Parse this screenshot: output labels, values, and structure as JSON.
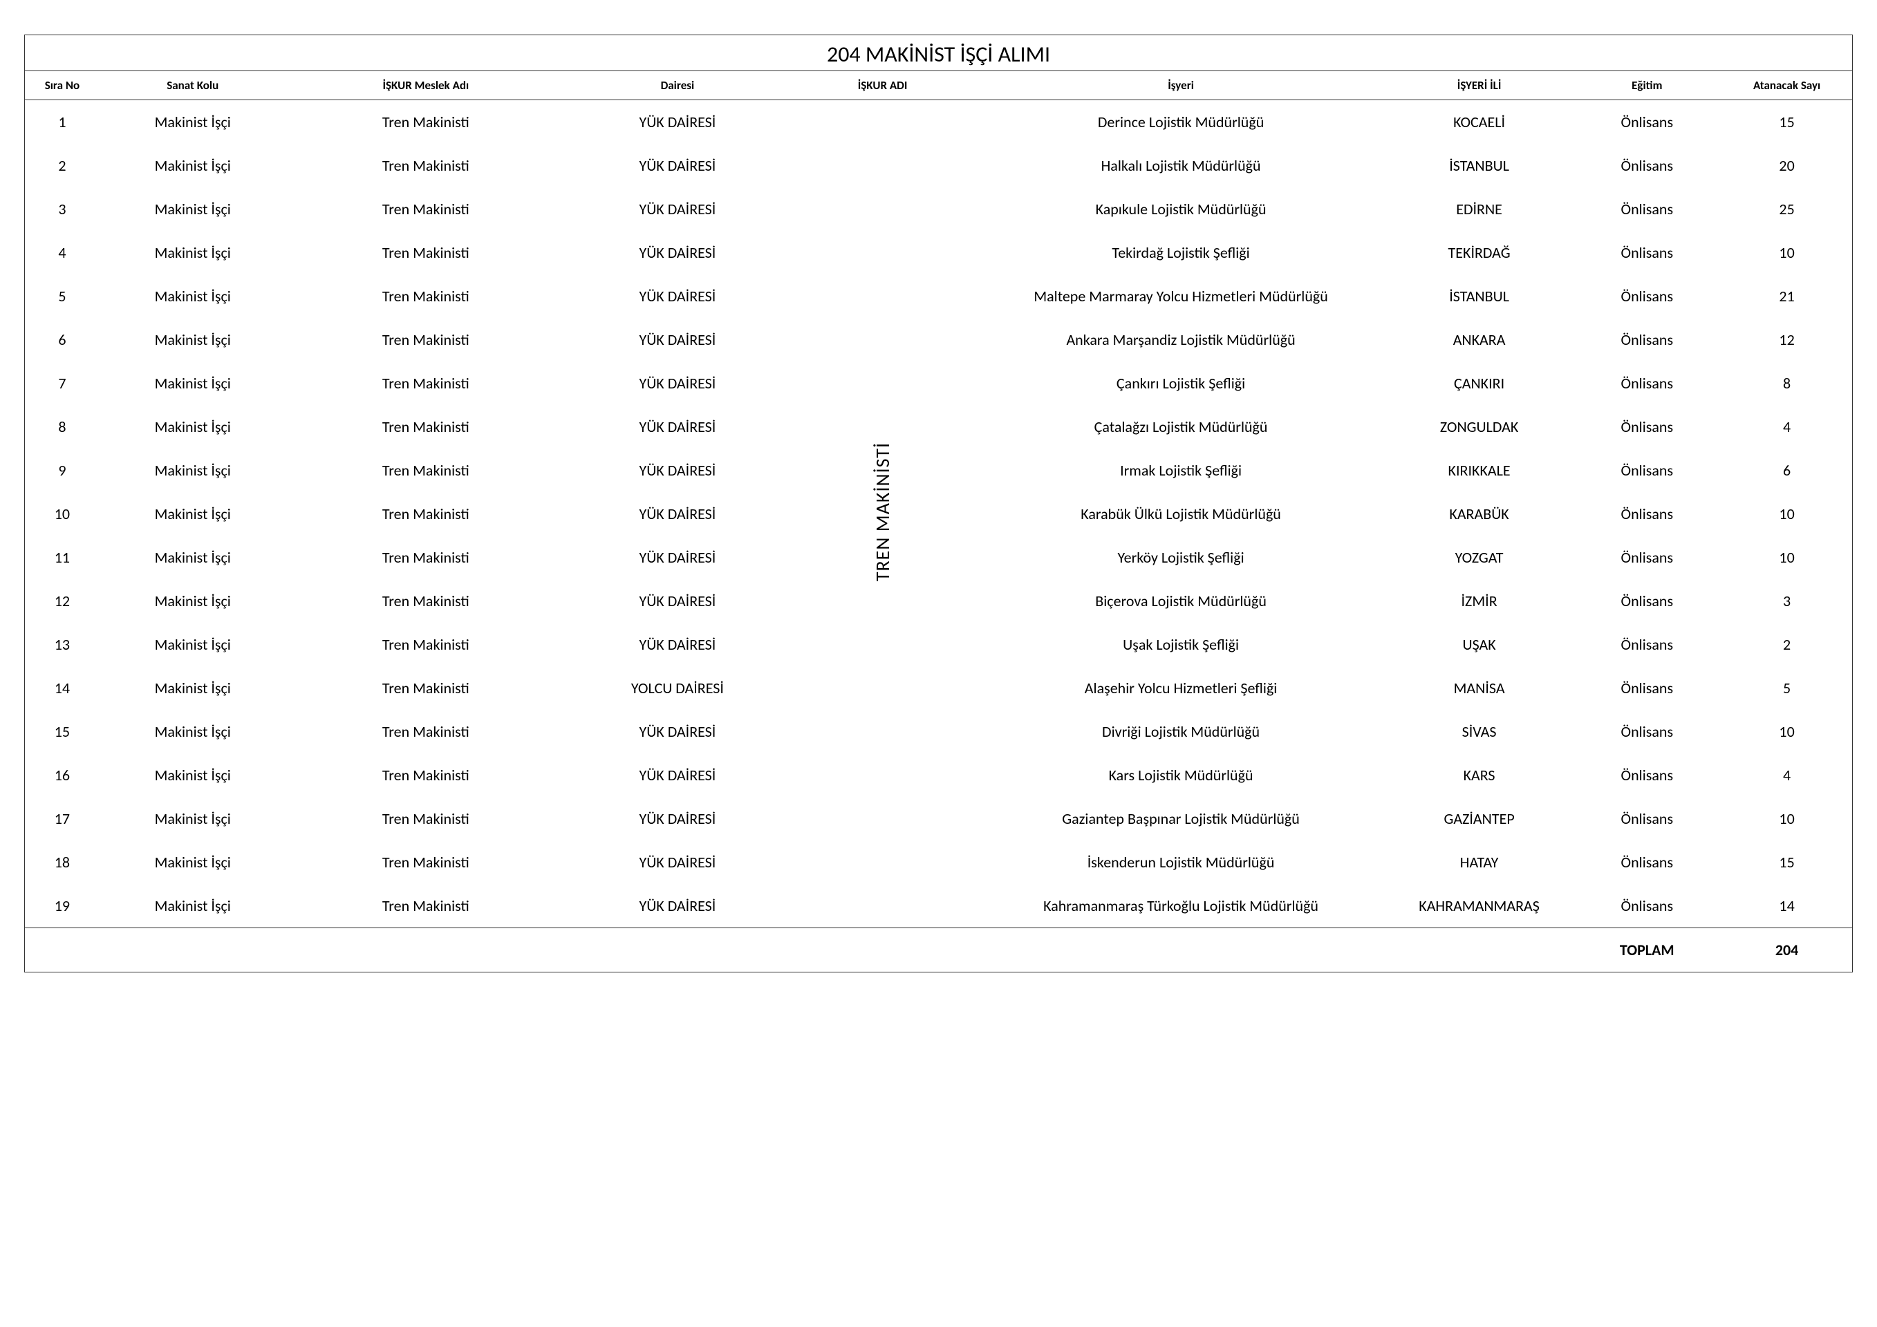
{
  "title": "204 MAKİNİST İŞÇİ ALIMI",
  "headers": {
    "sira": "Sıra No",
    "sanat": "Sanat Kolu",
    "meslek": "İŞKUR Meslek Adı",
    "dairesi": "Dairesi",
    "iskur": "İŞKUR ADI",
    "isyeri": "İşyeri",
    "il": "İŞYERİ İLİ",
    "egitim": "Eğitim",
    "sayi": "Atanacak Sayı"
  },
  "iskur_adi": "TREN MAKİNİSTİ",
  "rows": [
    {
      "sira": "1",
      "sanat": "Makinist İşçi",
      "meslek": "Tren Makinisti",
      "dairesi": "YÜK DAİRESİ",
      "isyeri": "Derince Lojistik Müdürlüğü",
      "il": "KOCAELİ",
      "egitim": "Önlisans",
      "sayi": "15"
    },
    {
      "sira": "2",
      "sanat": "Makinist İşçi",
      "meslek": "Tren Makinisti",
      "dairesi": "YÜK DAİRESİ",
      "isyeri": "Halkalı Lojistik Müdürlüğü",
      "il": "İSTANBUL",
      "egitim": "Önlisans",
      "sayi": "20"
    },
    {
      "sira": "3",
      "sanat": "Makinist İşçi",
      "meslek": "Tren Makinisti",
      "dairesi": "YÜK DAİRESİ",
      "isyeri": "Kapıkule Lojistik Müdürlüğü",
      "il": "EDİRNE",
      "egitim": "Önlisans",
      "sayi": "25"
    },
    {
      "sira": "4",
      "sanat": "Makinist İşçi",
      "meslek": "Tren Makinisti",
      "dairesi": "YÜK DAİRESİ",
      "isyeri": "Tekirdağ Lojistik Şefliği",
      "il": "TEKİRDAĞ",
      "egitim": "Önlisans",
      "sayi": "10"
    },
    {
      "sira": "5",
      "sanat": "Makinist İşçi",
      "meslek": "Tren Makinisti",
      "dairesi": "YÜK DAİRESİ",
      "isyeri": "Maltepe Marmaray Yolcu Hizmetleri Müdürlüğü",
      "il": "İSTANBUL",
      "egitim": "Önlisans",
      "sayi": "21"
    },
    {
      "sira": "6",
      "sanat": "Makinist İşçi",
      "meslek": "Tren Makinisti",
      "dairesi": "YÜK DAİRESİ",
      "isyeri": "Ankara Marşandiz Lojistik Müdürlüğü",
      "il": "ANKARA",
      "egitim": "Önlisans",
      "sayi": "12"
    },
    {
      "sira": "7",
      "sanat": "Makinist İşçi",
      "meslek": "Tren Makinisti",
      "dairesi": "YÜK DAİRESİ",
      "isyeri": "Çankırı Lojistik Şefliği",
      "il": "ÇANKIRI",
      "egitim": "Önlisans",
      "sayi": "8"
    },
    {
      "sira": "8",
      "sanat": "Makinist İşçi",
      "meslek": "Tren Makinisti",
      "dairesi": "YÜK DAİRESİ",
      "isyeri": "Çatalağzı Lojistik Müdürlüğü",
      "il": "ZONGULDAK",
      "egitim": "Önlisans",
      "sayi": "4"
    },
    {
      "sira": "9",
      "sanat": "Makinist İşçi",
      "meslek": "Tren Makinisti",
      "dairesi": "YÜK DAİRESİ",
      "isyeri": "Irmak Lojistik Şefliği",
      "il": "KIRIKKALE",
      "egitim": "Önlisans",
      "sayi": "6"
    },
    {
      "sira": "10",
      "sanat": "Makinist İşçi",
      "meslek": "Tren Makinisti",
      "dairesi": "YÜK DAİRESİ",
      "isyeri": "Karabük Ülkü Lojistik Müdürlüğü",
      "il": "KARABÜK",
      "egitim": "Önlisans",
      "sayi": "10"
    },
    {
      "sira": "11",
      "sanat": "Makinist İşçi",
      "meslek": "Tren Makinisti",
      "dairesi": "YÜK DAİRESİ",
      "isyeri": "Yerköy Lojistik Şefliği",
      "il": "YOZGAT",
      "egitim": "Önlisans",
      "sayi": "10"
    },
    {
      "sira": "12",
      "sanat": "Makinist İşçi",
      "meslek": "Tren Makinisti",
      "dairesi": "YÜK DAİRESİ",
      "isyeri": "Biçerova Lojistik Müdürlüğü",
      "il": "İZMİR",
      "egitim": "Önlisans",
      "sayi": "3"
    },
    {
      "sira": "13",
      "sanat": "Makinist İşçi",
      "meslek": "Tren Makinisti",
      "dairesi": "YÜK DAİRESİ",
      "isyeri": "Uşak Lojistik Şefliği",
      "il": "UŞAK",
      "egitim": "Önlisans",
      "sayi": "2"
    },
    {
      "sira": "14",
      "sanat": "Makinist İşçi",
      "meslek": "Tren Makinisti",
      "dairesi": "YOLCU DAİRESİ",
      "isyeri": "Alaşehir Yolcu Hizmetleri Şefliği",
      "il": "MANİSA",
      "egitim": "Önlisans",
      "sayi": "5"
    },
    {
      "sira": "15",
      "sanat": "Makinist İşçi",
      "meslek": "Tren Makinisti",
      "dairesi": "YÜK DAİRESİ",
      "isyeri": "Divriği Lojistik Müdürlüğü",
      "il": "SİVAS",
      "egitim": "Önlisans",
      "sayi": "10"
    },
    {
      "sira": "16",
      "sanat": "Makinist İşçi",
      "meslek": "Tren Makinisti",
      "dairesi": "YÜK DAİRESİ",
      "isyeri": "Kars Lojistik Müdürlüğü",
      "il": "KARS",
      "egitim": "Önlisans",
      "sayi": "4"
    },
    {
      "sira": "17",
      "sanat": "Makinist İşçi",
      "meslek": "Tren Makinisti",
      "dairesi": "YÜK DAİRESİ",
      "isyeri": "Gaziantep Başpınar Lojistik Müdürlüğü",
      "il": "GAZİANTEP",
      "egitim": "Önlisans",
      "sayi": "10"
    },
    {
      "sira": "18",
      "sanat": "Makinist İşçi",
      "meslek": "Tren Makinisti",
      "dairesi": "YÜK DAİRESİ",
      "isyeri": "İskenderun Lojistik Müdürlüğü",
      "il": "HATAY",
      "egitim": "Önlisans",
      "sayi": "15"
    },
    {
      "sira": "19",
      "sanat": "Makinist İşçi",
      "meslek": "Tren Makinisti",
      "dairesi": "YÜK DAİRESİ",
      "isyeri": "Kahramanmaraş Türkoğlu Lojistik Müdürlüğü",
      "il": "KAHRAMANMARAŞ",
      "egitim": "Önlisans",
      "sayi": "14"
    }
  ],
  "total": {
    "label": "TOPLAM",
    "value": "204"
  },
  "styling": {
    "background_color": "#ffffff",
    "border_color": "#333333",
    "title_fontsize": 32,
    "header_fontsize": 17,
    "cell_fontsize": 22,
    "vertical_fontsize": 28,
    "font_family": "Calibri"
  }
}
